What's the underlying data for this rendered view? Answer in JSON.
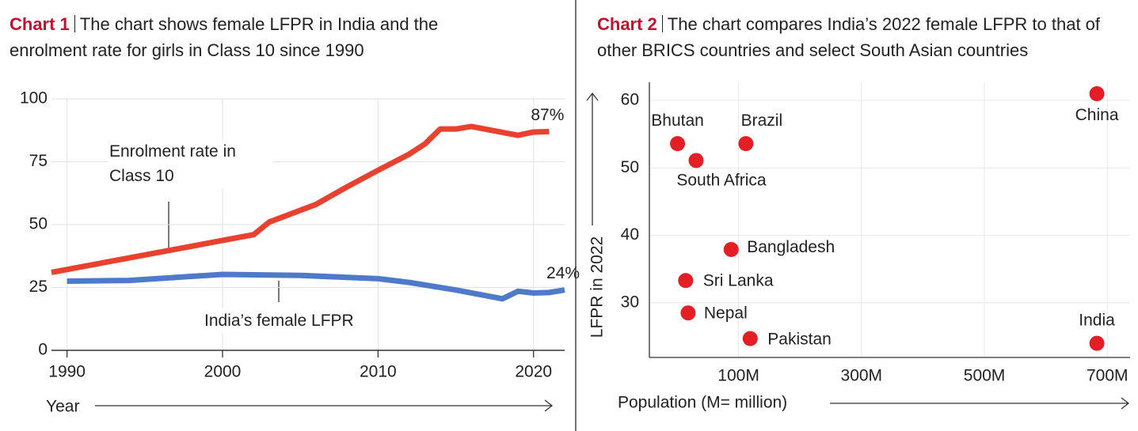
{
  "chart_data": [
    {
      "type": "line",
      "label": "Chart 1",
      "title": "The chart shows female LFPR in India and the enrolment rate for girls in Class 10 since 1990",
      "x_label": "Year",
      "xlim": [
        1989,
        2022
      ],
      "xticks": [
        1990,
        2000,
        2010,
        2020
      ],
      "ylim": [
        0,
        100
      ],
      "yticks": [
        0,
        25,
        50,
        75,
        100
      ],
      "grid": true,
      "series": [
        {
          "name": "Enrolment rate in Class 10",
          "color": "#e8412f",
          "x": [
            1989,
            2002,
            2003,
            2006,
            2008,
            2010,
            2012,
            2013,
            2014,
            2015,
            2016,
            2019,
            2020,
            2021
          ],
          "values": [
            31,
            46,
            51,
            58,
            65,
            71.6,
            78,
            82,
            88,
            88,
            89,
            85.5,
            86.8,
            87
          ],
          "value_labels": [
            null,
            null,
            null,
            null,
            null,
            null,
            null,
            null,
            null,
            null,
            null,
            null,
            null,
            "87%"
          ]
        },
        {
          "name": "India’s female LFPR",
          "color": "#4f7ac9",
          "x": [
            1990,
            1994,
            2000,
            2005,
            2010,
            2012,
            2015,
            2018,
            2019,
            2020,
            2021,
            2022
          ],
          "values": [
            27.5,
            27.8,
            30.2,
            29.8,
            28.5,
            27,
            24,
            20.5,
            23.5,
            22.8,
            23,
            24
          ],
          "value_labels": [
            null,
            null,
            null,
            null,
            null,
            null,
            null,
            null,
            null,
            null,
            null,
            "24%"
          ]
        }
      ]
    },
    {
      "type": "scatter",
      "label": "Chart 2",
      "title": "The chart compares India’s 2022 female LFPR to that of other BRICS countries and select South Asian countries",
      "x_label": "Population (M= million)",
      "y_label": "LFPR in 2022",
      "xlim": [
        -45,
        737
      ],
      "xticks": [
        {
          "value": 100,
          "label": "100M"
        },
        {
          "value": 300,
          "label": "300M"
        },
        {
          "value": 500,
          "label": "500M"
        },
        {
          "value": 700,
          "label": "700M"
        }
      ],
      "ylim": [
        21.9,
        62.7
      ],
      "yticks": [
        30,
        40,
        50,
        60
      ],
      "grid": true,
      "color": "#e31e24",
      "labels": [
        "Bhutan",
        "Brazil",
        "China",
        "South Africa",
        "Bangladesh",
        "Sri Lanka",
        "Nepal",
        "Pakistan",
        "India"
      ],
      "x": [
        0.8,
        112,
        683,
        31,
        88,
        14,
        18,
        119,
        683
      ],
      "values": [
        53.6,
        53.6,
        61,
        51.1,
        37.9,
        33.3,
        28.5,
        24.7,
        24
      ]
    }
  ]
}
